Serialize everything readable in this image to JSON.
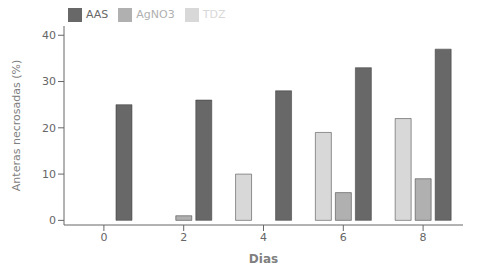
{
  "chart_data": {
    "type": "bar",
    "categories": [
      "0",
      "2",
      "4",
      "6",
      "8"
    ],
    "series": [
      {
        "name": "TDZ",
        "color": "#d8d8d8",
        "values": [
          0,
          0,
          10,
          19,
          22
        ]
      },
      {
        "name": "AgNO3",
        "color": "#b0b0b0",
        "values": [
          0,
          1,
          0,
          6,
          9
        ]
      },
      {
        "name": "AAS",
        "color": "#686868",
        "values": [
          25,
          26,
          28,
          33,
          37
        ]
      }
    ],
    "xlabel": "Dias",
    "ylabel": "Anteras necrosadas (%)",
    "ylim": [
      -1,
      42
    ],
    "yticks": [
      0,
      10,
      20,
      30,
      40
    ],
    "grid": false,
    "legend": "upper left"
  }
}
